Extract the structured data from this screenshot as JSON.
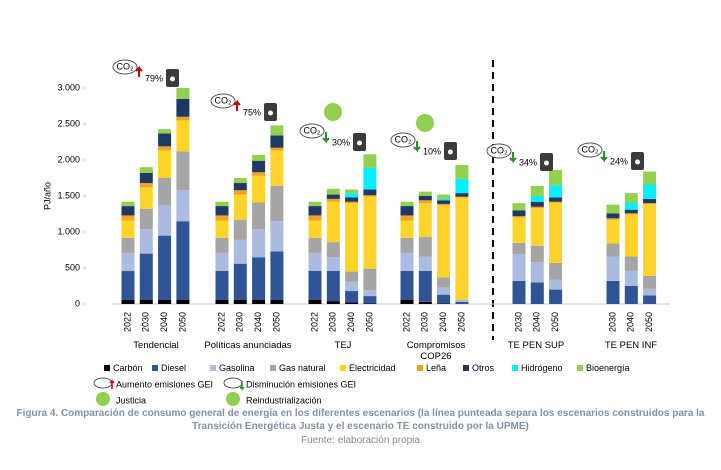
{
  "chart_data": {
    "type": "stacked-bar",
    "y_label": "PJ/año",
    "ylim": [
      0,
      3000
    ],
    "yticks": [
      0,
      500,
      {
        "value": 1000,
        "label": "1.000"
      },
      {
        "value": 1500,
        "label": "1.500"
      },
      {
        "value": 2000,
        "label": "2.000"
      },
      {
        "value": 2500,
        "label": "2.500"
      },
      {
        "value": 3000,
        "label": "3.000"
      }
    ],
    "groups": [
      {
        "name": "Tendencial",
        "categories": [
          "2022",
          "2030",
          "2040",
          "2050"
        ]
      },
      {
        "name": "Políticas anunciadas",
        "categories": [
          "2022",
          "2030",
          "2040",
          "2050"
        ]
      },
      {
        "name": "TEJ",
        "categories": [
          "2022",
          "2030",
          "2040",
          "2050"
        ]
      },
      {
        "name": "Compromisos COP26",
        "categories": [
          "2022",
          "2030",
          "2040",
          "2050"
        ]
      },
      {
        "name": "TE PEN SUP",
        "categories": [
          "2030",
          "2040",
          "2050"
        ]
      },
      {
        "name": "TE PEN INF",
        "categories": [
          "2030",
          "2040",
          "2050"
        ]
      }
    ],
    "series": [
      {
        "name": "Carbón",
        "color": "#000000",
        "values": [
          60,
          60,
          60,
          60,
          60,
          60,
          60,
          60,
          60,
          40,
          20,
          10,
          60,
          30,
          10,
          0,
          0,
          0,
          0,
          0,
          0,
          0
        ]
      },
      {
        "name": "Diesel",
        "color": "#2f5597",
        "values": [
          400,
          640,
          890,
          1090,
          400,
          500,
          590,
          670,
          400,
          420,
          160,
          100,
          400,
          430,
          120,
          30,
          320,
          300,
          200,
          320,
          250,
          120
        ]
      },
      {
        "name": "Gasolina",
        "color": "#a9bce0",
        "values": [
          250,
          340,
          420,
          430,
          250,
          330,
          390,
          420,
          250,
          190,
          130,
          80,
          250,
          200,
          100,
          20,
          370,
          280,
          140,
          340,
          210,
          90
        ]
      },
      {
        "name": "Gas natural",
        "color": "#a5a5a5",
        "values": [
          210,
          280,
          380,
          540,
          210,
          280,
          370,
          490,
          210,
          210,
          140,
          300,
          210,
          270,
          140,
          10,
          160,
          230,
          230,
          180,
          200,
          180
        ]
      },
      {
        "name": "Electricidad",
        "color": "#ffd42a",
        "values": [
          240,
          300,
          380,
          430,
          240,
          350,
          370,
          490,
          240,
          560,
          950,
          1000,
          240,
          470,
          1000,
          1420,
          350,
          520,
          840,
          330,
          580,
          1000
        ]
      },
      {
        "name": "Leña",
        "color": "#f4a21f",
        "values": [
          70,
          60,
          60,
          50,
          70,
          60,
          50,
          40,
          70,
          40,
          20,
          20,
          70,
          40,
          20,
          10,
          20,
          20,
          10,
          20,
          20,
          10
        ]
      },
      {
        "name": "Otros",
        "color": "#1f3864",
        "values": [
          130,
          140,
          180,
          250,
          130,
          100,
          160,
          170,
          130,
          60,
          60,
          80,
          130,
          60,
          50,
          50,
          80,
          70,
          60,
          70,
          50,
          60
        ]
      },
      {
        "name": "Hidrógeno",
        "color": "#00f0ff",
        "values": [
          0,
          0,
          0,
          0,
          0,
          0,
          0,
          0,
          0,
          0,
          60,
          300,
          0,
          0,
          20,
          200,
          0,
          80,
          170,
          0,
          100,
          200
        ]
      },
      {
        "name": "Bioenergía",
        "color": "#92d050",
        "values": [
          60,
          80,
          60,
          150,
          60,
          70,
          80,
          140,
          60,
          80,
          50,
          190,
          60,
          60,
          60,
          190,
          100,
          140,
          210,
          120,
          130,
          180
        ]
      }
    ],
    "annotations": [
      {
        "text": "79%",
        "trend": "up"
      },
      {
        "text": "75%",
        "trend": "up"
      },
      {
        "text": "30%",
        "trend": "down"
      },
      {
        "text": "10%",
        "trend": "down"
      },
      {
        "text": "34%",
        "trend": "down"
      },
      {
        "text": "24%",
        "trend": "down"
      }
    ],
    "co2": "CO₂",
    "icon_legend": [
      "Aumento emisiones GEI",
      "Disminución emisiones GEI",
      "Justicia",
      "Reindustrialización"
    ]
  },
  "caption": "Figura 4. Comparación de consumo general de energía en los diferentes escenarios (la línea punteada separa los escenarios construidos para la Transición Energética Justa y el escenario TE construido por la UPME)",
  "source": "Fuente: elaboración propia"
}
